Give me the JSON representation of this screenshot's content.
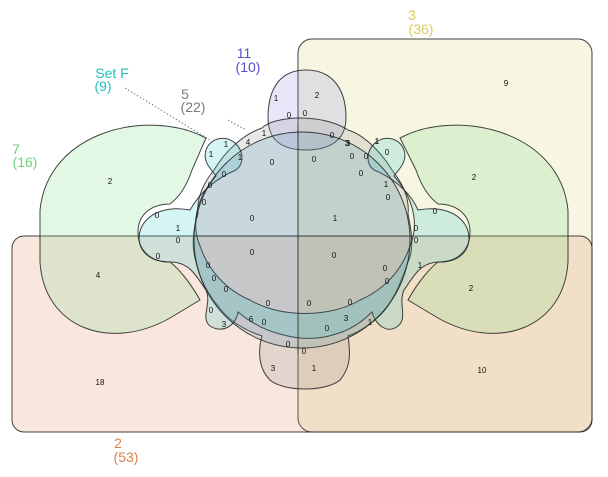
{
  "sets": [
    {
      "key": "s3",
      "name": "3",
      "count": "(36)",
      "color": "#dcd580"
    },
    {
      "key": "s2",
      "name": "2",
      "count": "(53)",
      "color": "#e0895a"
    },
    {
      "key": "s7",
      "name": "7",
      "count": "(16)",
      "color": "#7fd98a"
    },
    {
      "key": "s11",
      "name": "11",
      "count": "(10)",
      "color": "#5a5ad0"
    },
    {
      "key": "s5",
      "name": "5",
      "count": "(22)",
      "color": "#808080"
    },
    {
      "key": "sF",
      "name": "Set F",
      "count": "(9)",
      "color": "#2cc7c7"
    }
  ],
  "regions": [
    "9",
    "2",
    "2",
    "10",
    "2",
    "4",
    "18",
    "1",
    "2",
    "3",
    "1",
    "1",
    "0",
    "0",
    "1",
    "4",
    "1",
    "1",
    "0",
    "0",
    "0",
    "3",
    "1",
    "0",
    "0",
    "0",
    "0",
    "1",
    "0",
    "0",
    "0",
    "0",
    "0",
    "1",
    "0",
    "0",
    "0",
    "1",
    "0",
    "0",
    "0",
    "0",
    "0",
    "1",
    "0",
    "0",
    "0",
    "0",
    "0",
    "0",
    "3",
    "6",
    "0",
    "0",
    "0",
    "0",
    "3",
    "0",
    "1",
    "0",
    "3",
    "1",
    "0"
  ]
}
